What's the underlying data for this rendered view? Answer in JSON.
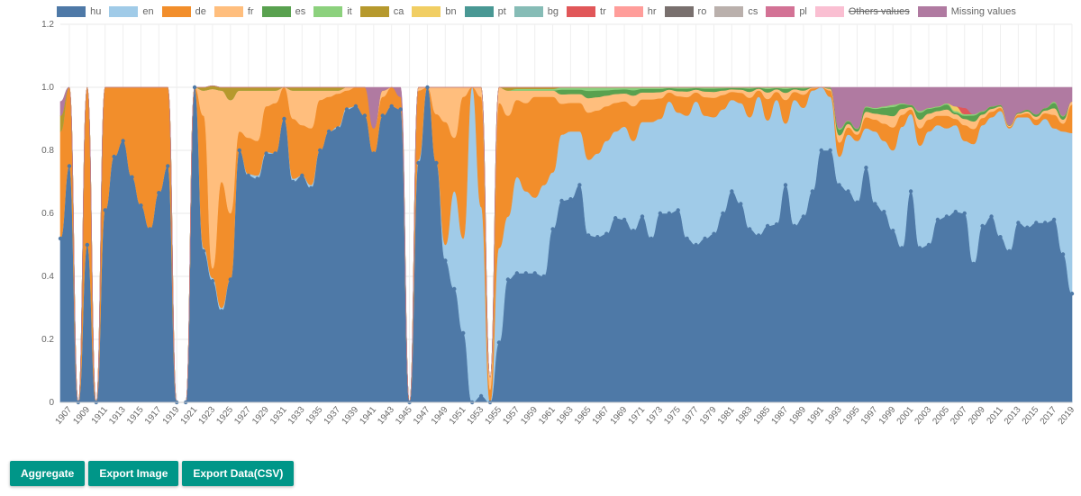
{
  "chart_data": {
    "type": "area",
    "stacked": true,
    "x_start": 1906,
    "x_end": 2019,
    "x_tick_labels_every": 2,
    "ylim": [
      0,
      1.2
    ],
    "yticks": [
      "0",
      "0.2",
      "0.4",
      "0.6",
      "0.8",
      "1.0",
      "1.2"
    ],
    "grid": true,
    "legend_placement": "top",
    "series": [
      {
        "name": "hu",
        "color": "#4e79a7",
        "start_year": 1906,
        "values": [
          0.52,
          0.75,
          0,
          0.5,
          0,
          0.61,
          0.78,
          0.83,
          0.715,
          0.625,
          0.55,
          0.665,
          0.75,
          0,
          0,
          1,
          0.48,
          0.385,
          0.29,
          0.39,
          0.8,
          0.72,
          0.71,
          0.79,
          0.79,
          0.9,
          0.7,
          0.72,
          0.68,
          0.8,
          0.86,
          0.87,
          0.93,
          0.94,
          0.91,
          0.79,
          0.91,
          0.94,
          0.93,
          0,
          0.76,
          1,
          0.76,
          0.45,
          0.36,
          0.22,
          0,
          0.02,
          0,
          0.19,
          0.39,
          0.41,
          0.41,
          0.41,
          0.4,
          0.55,
          0.64,
          0.645,
          0.69,
          0.53,
          0.525,
          0.535,
          0.585,
          0.58,
          0.545,
          0.59,
          0.52,
          0.6,
          0.6,
          0.61,
          0.52,
          0.5,
          0.52,
          0.535,
          0.6,
          0.67,
          0.63,
          0.55,
          0.53,
          0.56,
          0.565,
          0.69,
          0.56,
          0.59,
          0.67,
          0.8,
          0.8,
          0.69,
          0.67,
          0.635,
          0.745,
          0.63,
          0.605,
          0.545,
          0.49,
          0.67,
          0.49,
          0.5,
          0.58,
          0.59,
          0.605,
          0.6,
          0.44,
          0.56,
          0.59,
          0.525,
          0.48,
          0.57,
          0.555,
          0.57,
          0.57,
          0.58,
          0.47,
          0.345
        ]
      },
      {
        "name": "en",
        "color": "#a0cbe8",
        "start_year": 1922,
        "values": [
          0.01,
          0.01,
          0.01,
          0,
          0,
          0.005,
          0.01,
          0.005,
          0,
          0,
          0.01,
          0,
          0.01,
          0,
          0,
          0.005,
          0.005,
          0,
          0,
          0,
          0,
          0,
          0,
          0,
          0.01,
          0,
          0,
          0.05,
          0.31,
          0.3,
          1,
          0.6,
          0,
          0.3,
          0.2,
          0.305,
          0.26,
          0.24,
          0.29,
          0.18,
          0.21,
          0.215,
          0.17,
          0.24,
          0.265,
          0.295,
          0.275,
          0.295,
          0.285,
          0.3,
          0.37,
          0.3,
          0.355,
          0.31,
          0.39,
          0.455,
          0.39,
          0.37,
          0.33,
          0.29,
          0.32,
          0.355,
          0.44,
          0.335,
          0.395,
          0.195,
          0.4,
          0.345,
          0.32,
          0.2,
          0.17,
          0.09,
          0.18,
          0.195,
          0.125,
          0.23,
          0.225,
          0.255,
          0.385,
          0.245,
          0.325,
          0.36,
          0.3,
          0.28,
          0.275,
          0.23,
          0.38,
          0.32,
          0.315,
          0.4,
          0.39,
          0.335,
          0.35,
          0.31,
          0.33,
          0.29,
          0.39,
          0.51
        ]
      },
      {
        "name": "de",
        "color": "#f28e2b",
        "start_year": 1906,
        "values": [
          0.34,
          0.25,
          0,
          0.5,
          0,
          0.39,
          0.22,
          0.17,
          0.285,
          0.375,
          0.45,
          0.335,
          0.25,
          0,
          0,
          0,
          0.42,
          0.03,
          0.4,
          0.21,
          0.06,
          0.115,
          0.11,
          0.145,
          0.16,
          0.1,
          0.19,
          0.16,
          0.18,
          0.16,
          0.11,
          0.105,
          0.055,
          0.06,
          0.09,
          0.08,
          0.06,
          0.06,
          0.04,
          0,
          0.22,
          0,
          0.155,
          0.39,
          0.17,
          0.45,
          0,
          0.35,
          0.04,
          0.46,
          0.32,
          0.245,
          0.28,
          0.32,
          0.28,
          0.24,
          0.098,
          0.091,
          0.091,
          0.15,
          0.137,
          0.11,
          0.091,
          0.081,
          0.11,
          0.072,
          0.072,
          0.065,
          0.029,
          0.052,
          0.059,
          0.029,
          0.059,
          0.062,
          0.046,
          0.026,
          0.033,
          0.062,
          0.02,
          0.068,
          0.026,
          0.075,
          0.026,
          0.042,
          0.007,
          0,
          0.02,
          0.045,
          0.023,
          0.02,
          0.035,
          0.038,
          0.055,
          0.073,
          0.038,
          0.015,
          0.055,
          0.038,
          0.03,
          0.04,
          0.02,
          0.05,
          0.048,
          0.023,
          0.018,
          0.01,
          0.005,
          0.008,
          0.013,
          0.018,
          0.018,
          0.043,
          0.025,
          0.09
        ]
      },
      {
        "name": "fr",
        "color": "#ffbe7d",
        "start_year": 1922,
        "values": [
          0.08,
          0.57,
          0.29,
          0.36,
          0.13,
          0.15,
          0.16,
          0.05,
          0.04,
          0,
          0.09,
          0.11,
          0.12,
          0.03,
          0.02,
          0.01,
          0.01,
          0,
          0,
          0,
          0.02,
          0,
          0,
          0,
          0.01,
          0,
          0.085,
          0.11,
          0.16,
          0.03,
          0,
          0.03,
          0.04,
          0.05,
          0.08,
          0.03,
          0.04,
          0.02,
          0.02,
          0.02,
          0.03,
          0.028,
          0.028,
          0.046,
          0.042,
          0.034,
          0.028,
          0.025,
          0.034,
          0.022,
          0.022,
          0.02,
          0.009,
          0.016,
          0.018,
          0.009,
          0.018,
          0.019,
          0.014,
          0.008,
          0.01,
          0.019,
          0.006,
          0.021,
          0.008,
          0.023,
          0.008,
          0.013,
          0.002,
          0,
          0.006,
          0.023,
          0.011,
          0.01,
          0.018,
          0.019,
          0.028,
          0.036,
          0.019,
          0.008,
          0.028,
          0.019,
          0.015,
          0.02,
          0.015,
          0.02,
          0.024,
          0.011,
          0.009,
          0.005,
          0.003,
          0.004,
          0.006,
          0.009,
          0.009,
          0.021,
          0.013,
          0.01
        ]
      },
      {
        "name": "es",
        "color": "#59a14f",
        "start_year": 1962,
        "values": [
          0.015,
          0.014,
          0.014,
          0.023,
          0.021,
          0.017,
          0.014,
          0.013,
          0.017,
          0.011,
          0.011,
          0.01,
          0.005,
          0.008,
          0.009,
          0.005,
          0.009,
          0.01,
          0.007,
          0.004,
          0.005,
          0.01,
          0.003,
          0.011,
          0.004,
          0.012,
          0.004,
          0.007,
          0.001,
          0,
          0.003,
          0.018,
          0.009,
          0.008,
          0.014,
          0.015,
          0.022,
          0.029,
          0.015,
          0.006,
          0.022,
          0.015,
          0.012,
          0.016,
          0.005,
          0.01,
          0.019,
          0.009,
          0.007,
          0.004,
          0.002,
          0.003,
          0.005,
          0.007,
          0.007,
          0.017,
          0.01,
          0
        ]
      },
      {
        "name": "it",
        "color": "#8cd17d",
        "start_year": 1957,
        "values": [
          0.005,
          0.005,
          0.005,
          0.005,
          0.005,
          0.007,
          0.007,
          0.007,
          0.011,
          0.01,
          0.009,
          0.007,
          0.006,
          0.009,
          0.005,
          0.005,
          0.005,
          0.002,
          0.004,
          0.004,
          0.002,
          0.004,
          0.004,
          0.003,
          0.002,
          0.002,
          0.004,
          0.001,
          0.005,
          0.002,
          0.005,
          0.002,
          0.003,
          0,
          0,
          0.001,
          0.004,
          0.002,
          0.002,
          0.003,
          0.003,
          0.005,
          0.007,
          0.003,
          0.001,
          0.005,
          0.003,
          0.003,
          0.004,
          0.005,
          0.005,
          0.004,
          0.002,
          0.001,
          0.001,
          0,
          0,
          0.001,
          0.001,
          0.001,
          0.004,
          0.002,
          0
        ]
      },
      {
        "name": "ca",
        "color": "#b6992d",
        "by_year": {
          "1906": 0.05,
          "1922": 0.01,
          "1923": 0.01,
          "1924": 0.01,
          "1925": 0.04,
          "1926": 0.01,
          "1927": 0.01,
          "1928": 0.01,
          "1929": 0.01,
          "1930": 0.01,
          "1932": 0.01,
          "1933": 0.01,
          "1934": 0.01,
          "1935": 0.01,
          "1936": 0.01,
          "1937": 0.01,
          "1956": 0.01,
          "1957": 0.005,
          "1958": 0.005,
          "1959": 0.005,
          "1960": 0.005,
          "1961": 0.005
        }
      },
      {
        "name": "bn",
        "color": "#f1ce63",
        "by_year": {
          "2006": 0.015
        }
      },
      {
        "name": "pt",
        "color": "#499894",
        "by_year": {}
      },
      {
        "name": "bg",
        "color": "#86bcb6",
        "by_year": {}
      },
      {
        "name": "tr",
        "color": "#e15759",
        "by_year": {
          "2007": 0.02
        }
      },
      {
        "name": "hr",
        "color": "#ff9d9a",
        "by_year": {}
      },
      {
        "name": "ro",
        "color": "#79706e",
        "by_year": {}
      },
      {
        "name": "cs",
        "color": "#bab0ac",
        "by_year": {}
      },
      {
        "name": "pl",
        "color": "#d37295",
        "by_year": {}
      },
      {
        "name": "Others values",
        "color": "#fabfd2",
        "hidden": true,
        "by_year": {}
      },
      {
        "name": "Missing values",
        "color": "#b07aa1",
        "by_year": {
          "1906": 0.045,
          "1941": 0.13,
          "1942": 0.01,
          "1944": 0.03,
          "1993": 0.13,
          "1994": 0.105,
          "1995": 0.13,
          "1996": 0.06,
          "1997": 0.065,
          "1998": 0.06,
          "1999": 0.055,
          "2000": 0.05,
          "2001": 0.055,
          "2002": 0.075,
          "2003": 0.065,
          "2004": 0.06,
          "2005": 0.05,
          "2006": 0.06,
          "2007": 0.065,
          "2008": 0.085,
          "2009": 0.075,
          "2010": 0.06,
          "2011": 0.055,
          "2012": 0.12,
          "2013": 0.08,
          "2014": 0.07,
          "2015": 0.085,
          "2016": 0.065,
          "2017": 0.045,
          "2018": 0.09,
          "2019": 0.045
        }
      }
    ]
  },
  "buttons": {
    "aggregate": "Aggregate",
    "export_image": "Export Image",
    "export_csv": "Export Data(CSV)"
  }
}
